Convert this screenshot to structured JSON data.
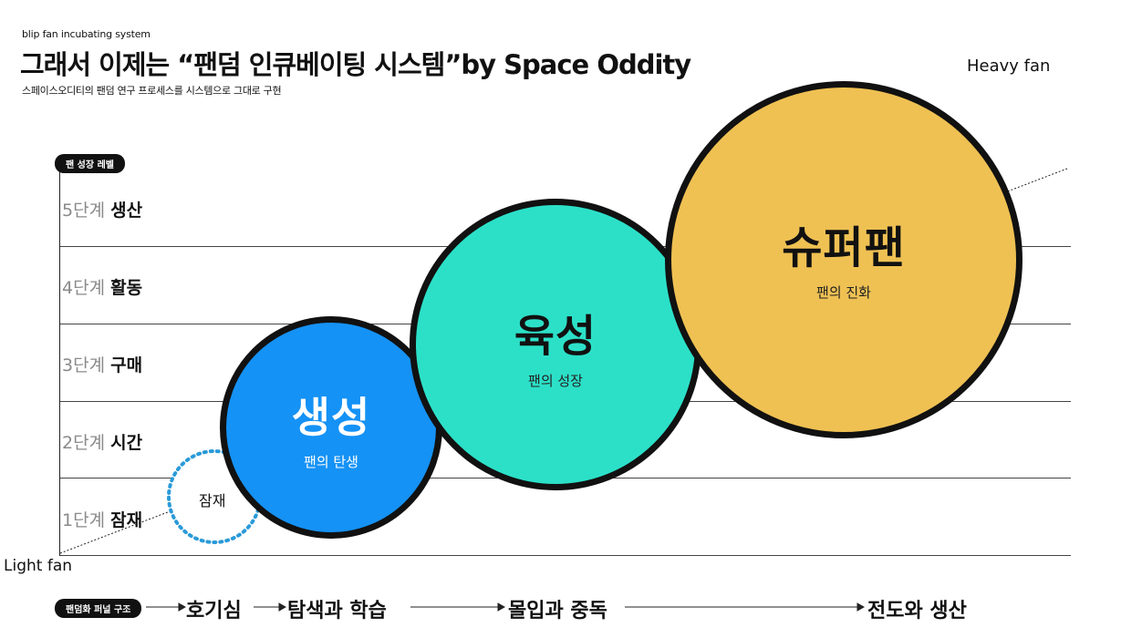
{
  "header": {
    "subtitle": "blip fan incubating system",
    "title": "그래서 이제는 “팬덤 인큐베이팅 시스템”by Space Oddity",
    "description": "스페이스오디티의 팬덤 연구 프로세스를 시스템으로 그대로 구현"
  },
  "axis": {
    "top_end_label": "Heavy fan",
    "bottom_start_label": "Light fan",
    "level_badge": "팬 성장 레벨"
  },
  "levels": [
    {
      "num": "5단계",
      "name": "생산"
    },
    {
      "num": "4단계",
      "name": "활동"
    },
    {
      "num": "3단계",
      "name": "구매"
    },
    {
      "num": "2단계",
      "name": "시간"
    },
    {
      "num": "1단계",
      "name": "잠재"
    }
  ],
  "stages": {
    "potential": {
      "label": "잠재",
      "color": "#2a9ad8"
    },
    "birth": {
      "title": "생성",
      "subtitle": "팬의 탄생",
      "color": "#1592f5"
    },
    "growth": {
      "title": "육성",
      "subtitle": "팬의 성장",
      "color": "#2ce0c8"
    },
    "super": {
      "title": "슈퍼팬",
      "subtitle": "팬의 진화",
      "color": "#efc153"
    }
  },
  "funnel": {
    "badge": "팬덤화 퍼널 구조",
    "steps": [
      "호기심",
      "탐색과 학습",
      "몰입과 중독",
      "전도와 생산"
    ]
  }
}
